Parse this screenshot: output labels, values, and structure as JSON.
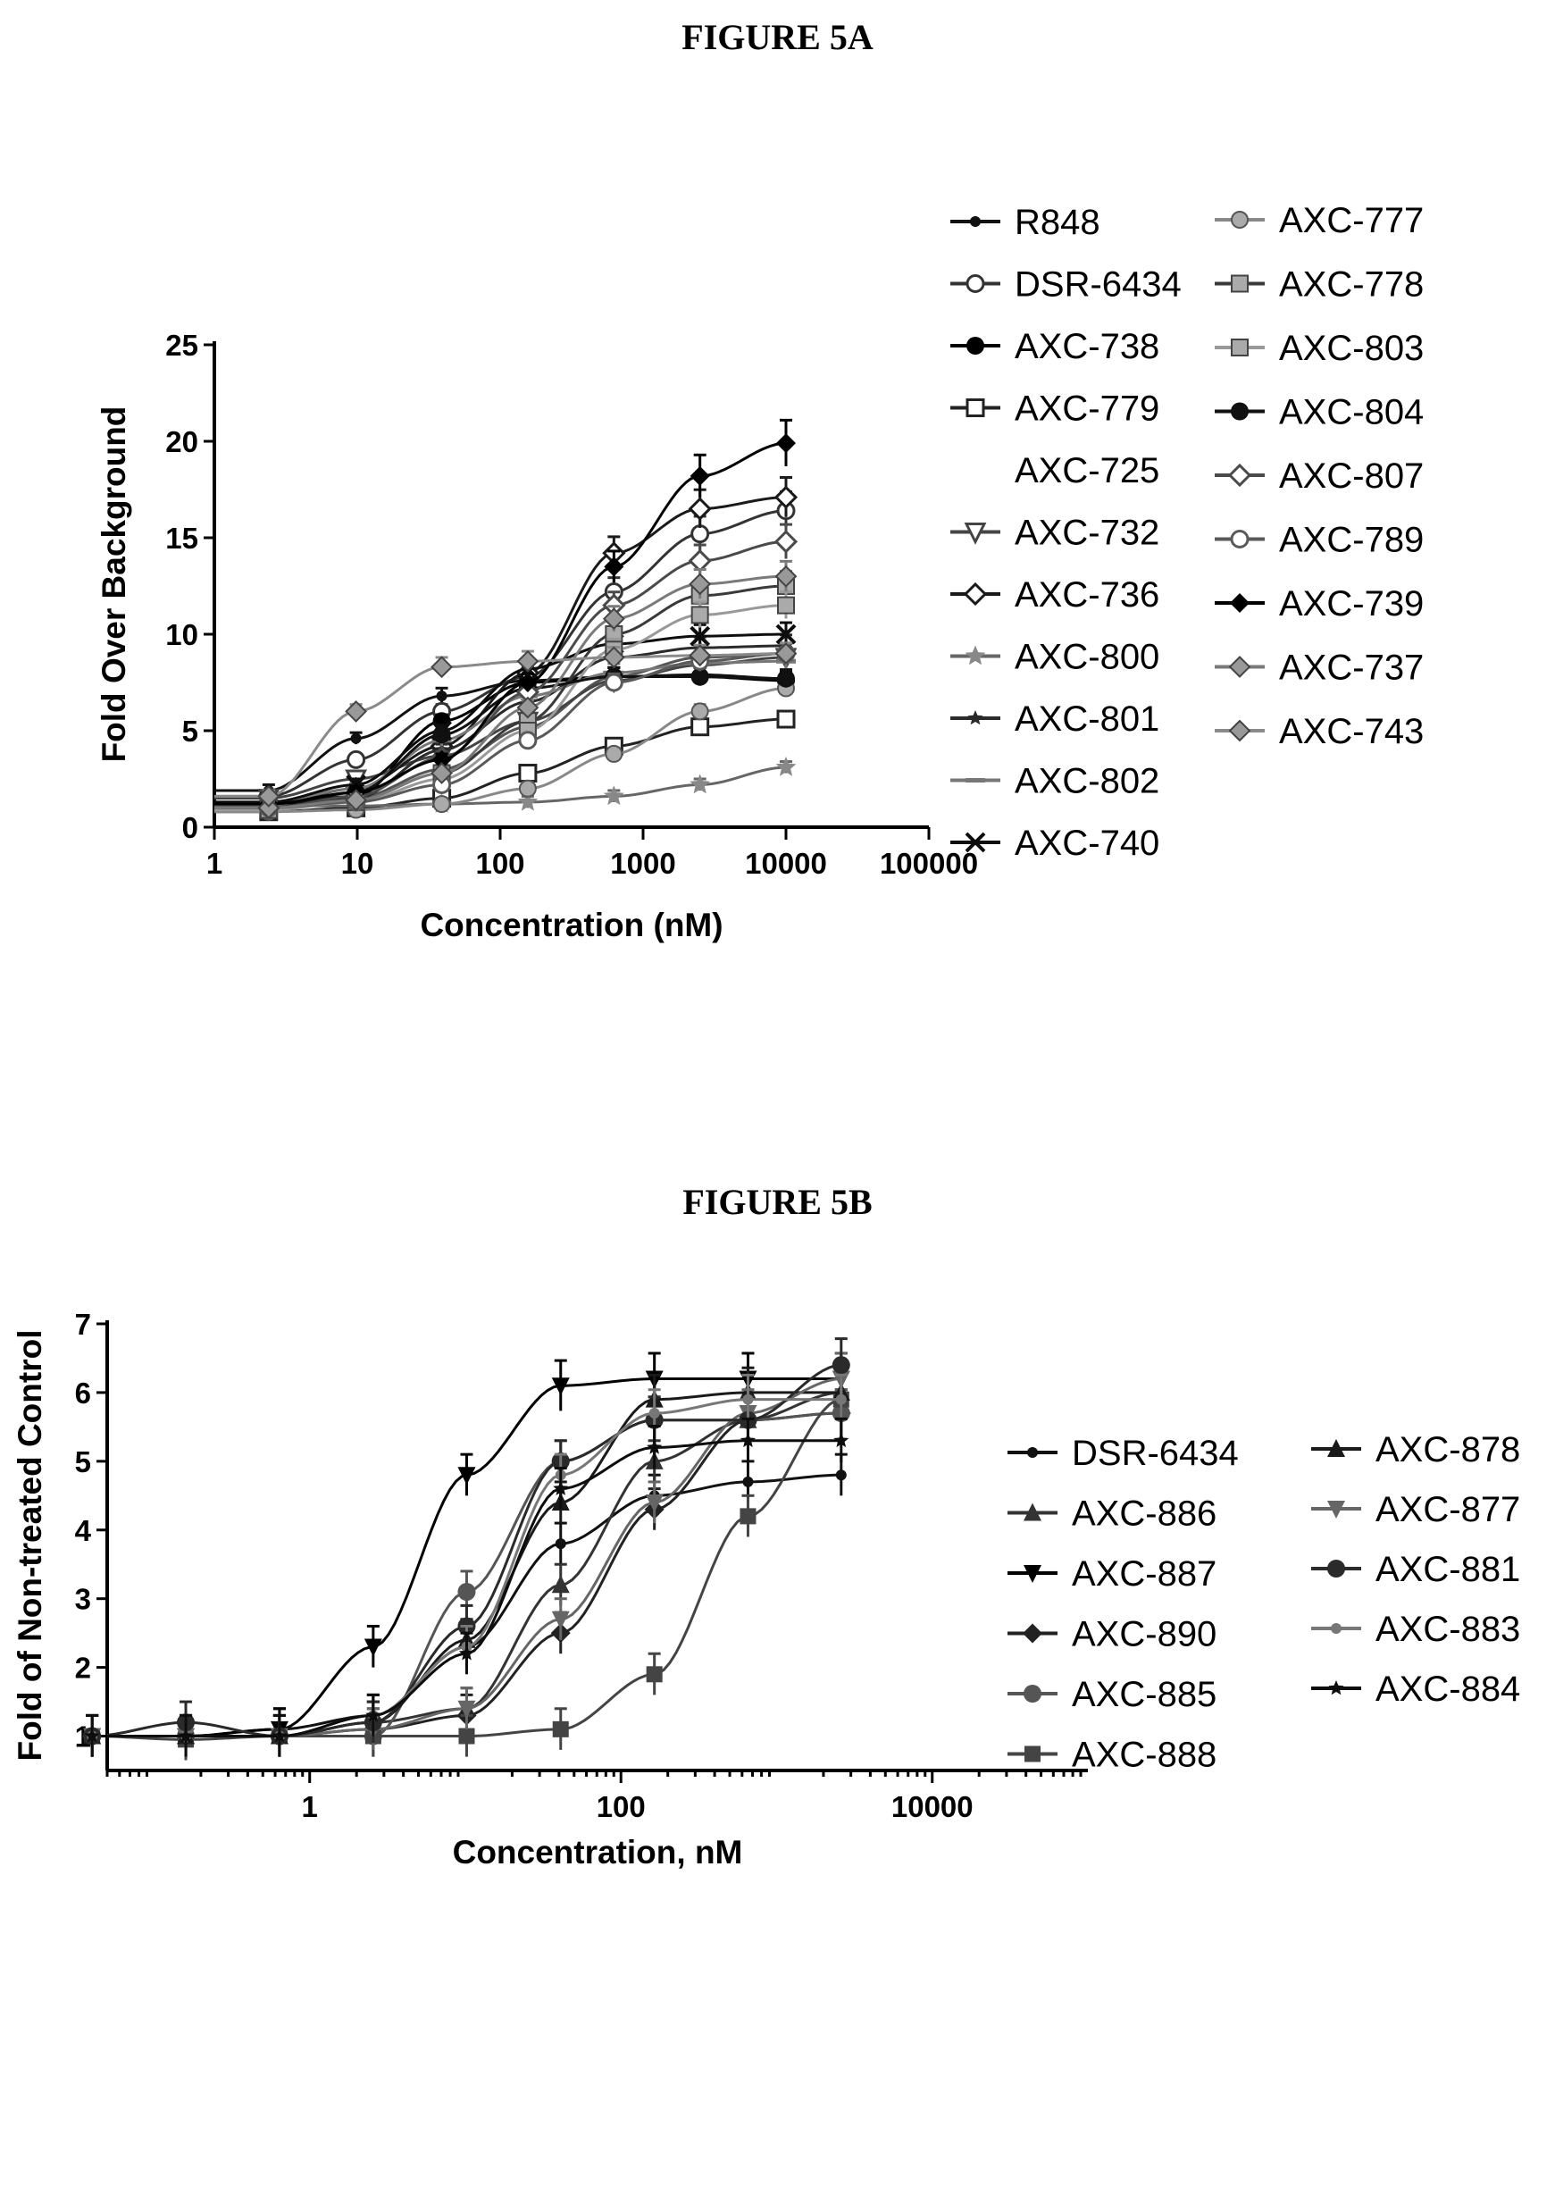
{
  "figures": {
    "a_title": "FIGURE 5A",
    "b_title": "FIGURE 5B"
  },
  "chart_data": [
    {
      "type": "line",
      "title": "FIGURE 5A",
      "xlabel": "Concentration (nM)",
      "ylabel": "Fold Over Background",
      "xscale": "log",
      "xlim": [
        1,
        100000
      ],
      "ylim": [
        0,
        25
      ],
      "xticks": [
        1,
        10,
        100,
        1000,
        10000,
        100000
      ],
      "xtick_labels": [
        "1",
        "10",
        "100",
        "1000",
        "10000",
        "100000"
      ],
      "yticks": [
        0,
        5,
        10,
        15,
        20,
        25
      ],
      "ytick_labels": [
        "0",
        "5",
        "10",
        "15",
        "20",
        "25"
      ],
      "legend_position": "right",
      "x": [
        2.4,
        9.8,
        39,
        156,
        625,
        2500,
        10000
      ],
      "series": [
        {
          "name": "R848",
          "marker": "dot",
          "values": [
            1.9,
            4.6,
            6.8,
            7.6,
            7.8,
            7.9,
            7.7
          ]
        },
        {
          "name": "DSR-6434",
          "marker": "circle-open",
          "values": [
            1.6,
            3.5,
            6.0,
            7.8,
            12.2,
            15.2,
            16.4
          ]
        },
        {
          "name": "AXC-738",
          "marker": "circle",
          "values": [
            1.2,
            1.6,
            5.5,
            7.5,
            7.8,
            7.8,
            7.6
          ]
        },
        {
          "name": "AXC-779",
          "marker": "square-open",
          "values": [
            0.8,
            1.0,
            1.5,
            2.8,
            4.2,
            5.2,
            5.6
          ]
        },
        {
          "name": "AXC-725",
          "marker": "none",
          "values": [
            1.0,
            1.5,
            3.0,
            5.2,
            7.8,
            8.8,
            9.0
          ]
        },
        {
          "name": "AXC-732",
          "marker": "triangle-down-open",
          "values": [
            1.5,
            2.5,
            3.7,
            5.5,
            7.6,
            8.4,
            8.8
          ]
        },
        {
          "name": "AXC-736",
          "marker": "diamond-open",
          "values": [
            1.2,
            2.0,
            4.2,
            8.0,
            14.2,
            16.5,
            17.1
          ]
        },
        {
          "name": "AXC-800",
          "marker": "star",
          "values": [
            1.1,
            1.1,
            1.2,
            1.3,
            1.6,
            2.2,
            3.1
          ]
        },
        {
          "name": "AXC-801",
          "marker": "star-small",
          "values": [
            1.0,
            1.5,
            4.0,
            6.5,
            8.8,
            9.3,
            9.4
          ]
        },
        {
          "name": "AXC-802",
          "marker": "dash",
          "values": [
            1.3,
            2.0,
            4.5,
            6.8,
            8.0,
            8.5,
            8.6
          ]
        },
        {
          "name": "AXC-740",
          "marker": "x",
          "values": [
            1.3,
            2.2,
            5.0,
            8.2,
            9.5,
            9.9,
            10.0
          ]
        },
        {
          "name": "AXC-777",
          "marker": "circle-gray",
          "values": [
            0.8,
            0.9,
            1.2,
            2.0,
            3.8,
            6.0,
            7.2
          ]
        },
        {
          "name": "AXC-778",
          "marker": "square-gray",
          "values": [
            1.0,
            1.4,
            2.8,
            5.5,
            10.0,
            12.0,
            12.5
          ]
        },
        {
          "name": "AXC-803",
          "marker": "square-gray",
          "values": [
            0.9,
            1.3,
            2.5,
            5.0,
            9.2,
            11.0,
            11.5
          ]
        },
        {
          "name": "AXC-804",
          "marker": "circle",
          "values": [
            1.0,
            1.8,
            4.8,
            7.2,
            7.8,
            7.8,
            7.7
          ]
        },
        {
          "name": "AXC-807",
          "marker": "diamond-open",
          "values": [
            1.0,
            1.6,
            3.6,
            7.0,
            11.5,
            13.8,
            14.8
          ]
        },
        {
          "name": "AXC-789",
          "marker": "circle-open",
          "values": [
            1.0,
            1.3,
            2.2,
            4.5,
            7.5,
            8.6,
            9.0
          ]
        },
        {
          "name": "AXC-739",
          "marker": "diamond",
          "values": [
            1.2,
            1.8,
            3.5,
            7.5,
            13.5,
            18.2,
            19.9
          ]
        },
        {
          "name": "AXC-737",
          "marker": "diamond-gray",
          "values": [
            1.0,
            1.4,
            2.8,
            6.2,
            10.8,
            12.6,
            13.0
          ]
        },
        {
          "name": "AXC-743",
          "marker": "diamond-gray",
          "values": [
            1.6,
            6.0,
            8.3,
            8.6,
            8.8,
            8.9,
            9.0
          ]
        }
      ]
    },
    {
      "type": "line",
      "title": "FIGURE 5B",
      "xlabel": "Concentration, nM",
      "ylabel": "Fold of Non-treated Control",
      "xscale": "log",
      "xlim": [
        0.05,
        100000
      ],
      "ylim": [
        0.5,
        7
      ],
      "xticks": [
        1,
        100,
        10000
      ],
      "xtick_labels": [
        "1",
        "100",
        "10000"
      ],
      "yticks": [
        1,
        2,
        3,
        4,
        5,
        6,
        7
      ],
      "ytick_labels": [
        "1",
        "2",
        "3",
        "4",
        "5",
        "6",
        "7"
      ],
      "legend_position": "right",
      "x": [
        0.04,
        0.16,
        0.64,
        2.56,
        10.2,
        41,
        164,
        655,
        2600
      ],
      "series": [
        {
          "name": "DSR-6434",
          "marker": "dot",
          "values": [
            1.0,
            1.0,
            1.1,
            1.3,
            2.3,
            3.8,
            4.5,
            4.7,
            4.8
          ]
        },
        {
          "name": "AXC-886",
          "marker": "triangle",
          "values": [
            1.0,
            1.0,
            1.0,
            1.2,
            1.4,
            3.2,
            5.0,
            5.6,
            6.0
          ]
        },
        {
          "name": "AXC-887",
          "marker": "triangle-down",
          "values": [
            1.0,
            1.0,
            1.1,
            2.3,
            4.8,
            6.1,
            6.2,
            6.2,
            6.2
          ]
        },
        {
          "name": "AXC-890",
          "marker": "diamond",
          "values": [
            1.0,
            1.0,
            1.0,
            1.1,
            1.3,
            2.5,
            4.3,
            5.6,
            5.7
          ]
        },
        {
          "name": "AXC-885",
          "marker": "circle",
          "values": [
            1.0,
            1.0,
            1.0,
            1.0,
            3.1,
            5.0,
            5.6,
            5.6,
            5.7
          ]
        },
        {
          "name": "AXC-888",
          "marker": "square",
          "values": [
            1.0,
            0.95,
            1.0,
            1.0,
            1.0,
            1.1,
            1.9,
            4.2,
            5.9
          ]
        },
        {
          "name": "AXC-878",
          "marker": "triangle",
          "values": [
            1.0,
            1.0,
            1.0,
            1.2,
            2.4,
            4.4,
            5.9,
            6.0,
            6.0
          ]
        },
        {
          "name": "AXC-877",
          "marker": "triangle-down",
          "values": [
            1.0,
            1.0,
            1.0,
            1.1,
            1.4,
            2.7,
            4.4,
            5.7,
            6.2
          ]
        },
        {
          "name": "AXC-881",
          "marker": "circle",
          "values": [
            1.0,
            1.2,
            1.0,
            1.2,
            2.6,
            5.0,
            5.6,
            5.6,
            6.4
          ]
        },
        {
          "name": "AXC-883",
          "marker": "dot",
          "values": [
            1.0,
            1.0,
            1.0,
            1.3,
            2.3,
            4.8,
            5.7,
            5.9,
            5.9
          ]
        },
        {
          "name": "AXC-884",
          "marker": "star-small",
          "values": [
            1.0,
            1.0,
            1.0,
            1.3,
            2.2,
            4.6,
            5.2,
            5.3,
            5.3
          ]
        }
      ]
    }
  ]
}
